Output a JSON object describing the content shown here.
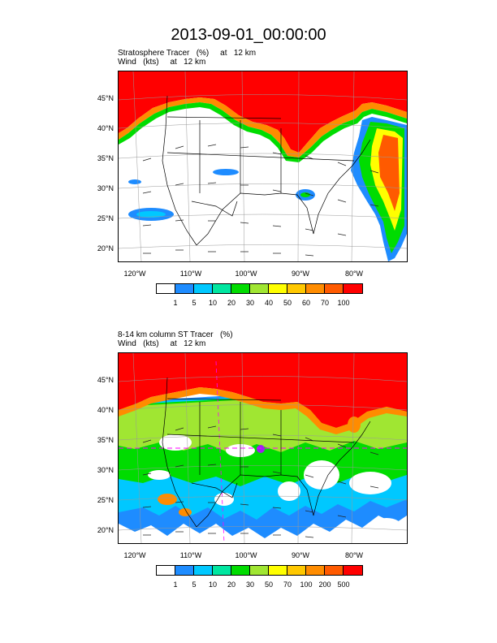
{
  "title": "2013-09-01_00:00:00",
  "panels": [
    {
      "subtitle_line1": "Stratosphere Tracer   (%)     at   12 km",
      "subtitle_line2": "Wind   (kts)     at   12 km",
      "lat_labels": [
        "45°N",
        "40°N",
        "35°N",
        "30°N",
        "25°N",
        "20°N"
      ],
      "lon_labels": [
        "120°W",
        "110°W",
        "100°W",
        "90°W",
        "80°W"
      ],
      "colorbar_labels": [
        "1",
        "5",
        "10",
        "20",
        "30",
        "40",
        "50",
        "60",
        "70",
        "100"
      ]
    },
    {
      "subtitle_line1": "8-14 km column ST Tracer   (%)",
      "subtitle_line2": "Wind   (kts)     at   12 km",
      "lat_labels": [
        "45°N",
        "40°N",
        "35°N",
        "30°N",
        "25°N",
        "20°N"
      ],
      "lon_labels": [
        "120°W",
        "110°W",
        "100°W",
        "90°W",
        "80°W"
      ],
      "colorbar_labels": [
        "1",
        "5",
        "10",
        "20",
        "30",
        "50",
        "70",
        "100",
        "200",
        "500"
      ]
    }
  ],
  "colorbar_colors": [
    "#ffffff",
    "#1e8cff",
    "#00c8ff",
    "#00e6a0",
    "#00dc00",
    "#a0e632",
    "#ffff00",
    "#ffc800",
    "#ff8c00",
    "#ff5a00",
    "#ff0000"
  ],
  "colors": {
    "background": "#ffffff",
    "map_lines": "#000000"
  }
}
